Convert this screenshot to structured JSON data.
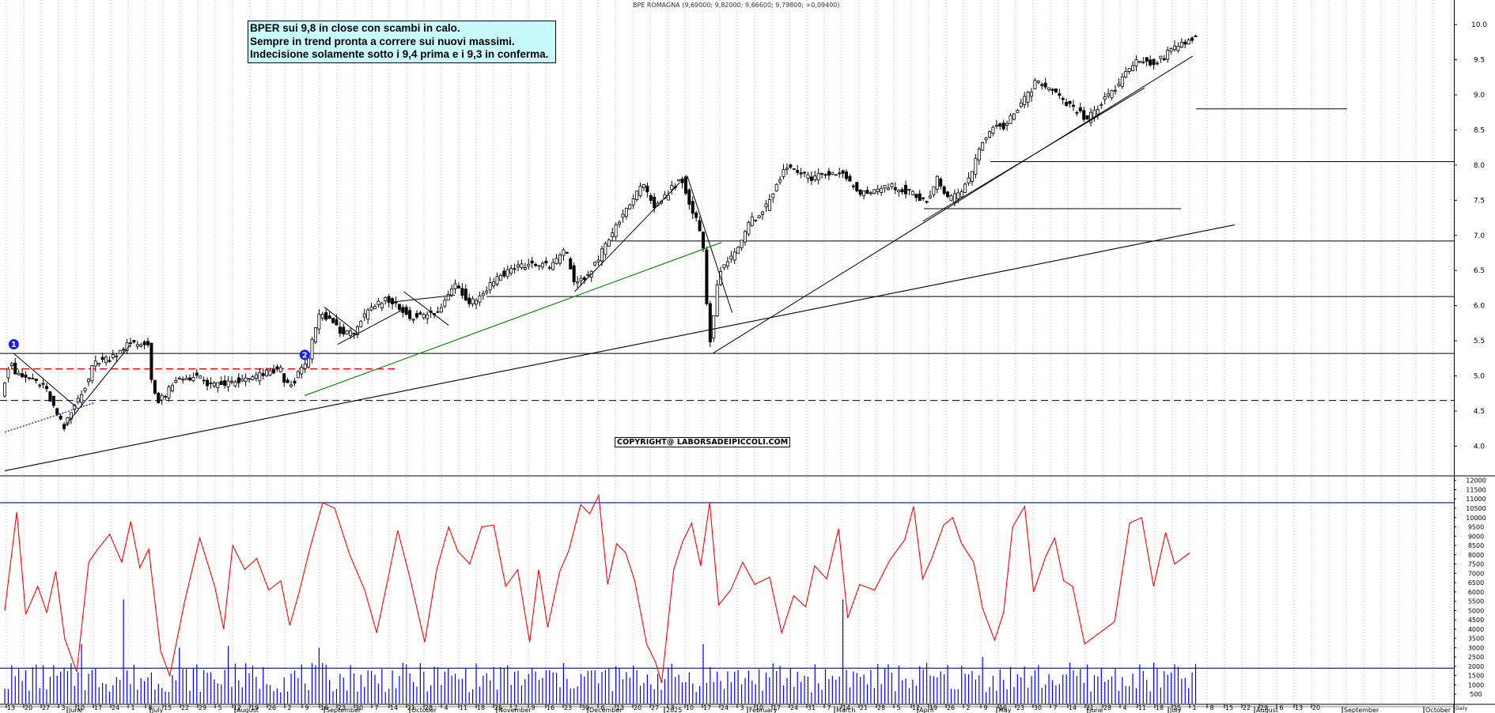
{
  "header": {
    "title": "BPE ROMAGNA (9,69000; 9,82000; 9,66600; 9,79800; +0,09400)"
  },
  "annotation": {
    "lines": [
      "BPER sui 9,8 in close con scambi in calo.",
      "Sempre in trend pronta a correre sui nuovi massimi.",
      "Indecisione solamente sotto i 9,4 prima e i 9,3 in conferma."
    ]
  },
  "copyright": "COPYRIGHT@ LABORSADEIPICCOLI.COM",
  "markers": [
    {
      "label": "1"
    },
    {
      "label": "2"
    }
  ],
  "colors": {
    "candle": "#000000",
    "trendline": "#000000",
    "green_trendline": "#008000",
    "red_dashed": "#ff0000",
    "blue_dotted": "#0000ff",
    "oscillator": "#ff0000",
    "volume": "#0000ff",
    "grid": "#b4b4b4",
    "note_bg": "#c8fbfb"
  },
  "chart_data": [
    {
      "type": "candlestick",
      "ylim": [
        3.6,
        10.35
      ],
      "yticks": [
        4.0,
        4.5,
        5.0,
        5.5,
        6.0,
        6.5,
        7.0,
        7.5,
        8.0,
        8.5,
        9.0,
        9.5,
        10.0
      ],
      "ytick_labels": [
        "4.0",
        "4.5",
        "5.0",
        "5.5",
        "6.0",
        "6.5",
        "7.0",
        "7.5",
        "8.0",
        "8.5",
        "9.0",
        "9.5",
        "10.0"
      ],
      "horizontal_lines": [
        {
          "y": 5.32,
          "style": "solid"
        },
        {
          "y": 6.13,
          "style": "solid"
        },
        {
          "y": 6.92,
          "style": "solid"
        },
        {
          "y": 7.38,
          "style": "solid"
        },
        {
          "y": 8.05,
          "style": "solid"
        },
        {
          "y": 8.8,
          "style": "solid"
        },
        {
          "y": 5.1,
          "style": "red-dashed"
        },
        {
          "y": 4.65,
          "style": "black-dashed"
        }
      ],
      "key_points": [
        {
          "date": "2024-06-13",
          "price": 5.32
        },
        {
          "date": "2024-06-19",
          "price": 4.3
        },
        {
          "date": "2024-07-24",
          "price": 5.55
        },
        {
          "date": "2024-08-05",
          "price": 4.55
        },
        {
          "date": "2024-10-04",
          "price": 4.75
        },
        {
          "date": "2024-10-09",
          "price": 5.6
        },
        {
          "date": "2025-03-10",
          "price": 7.7
        },
        {
          "date": "2025-03-24",
          "price": 7.85
        },
        {
          "date": "2025-04-07",
          "price": 5.35
        },
        {
          "date": "2025-05-12",
          "price": 8.05
        },
        {
          "date": "2025-07-14",
          "price": 7.2
        },
        {
          "date": "2025-08-01",
          "price": 8.8
        },
        {
          "date": "2025-08-14",
          "price": 9.2
        },
        {
          "date": "2025-09-04",
          "price": 8.6
        },
        {
          "date": "2025-10-10",
          "price": 9.8
        }
      ],
      "last": {
        "open": 9.69,
        "high": 9.82,
        "low": 9.666,
        "close": 9.798,
        "change": 0.094
      }
    },
    {
      "type": "line",
      "name": "",
      "ylim": [
        0,
        12200
      ],
      "yticks": [
        500,
        1000,
        1500,
        2000,
        2500,
        3000,
        3500,
        4000,
        4500,
        5000,
        5500,
        6000,
        6500,
        7000,
        7500,
        8000,
        8500,
        9000,
        9500,
        10000,
        10500,
        11000,
        11500,
        12000
      ],
      "ytick_labels": [
        "500",
        "1000",
        "1500",
        "2000",
        "2500",
        "3000",
        "3500",
        "4000",
        "4500",
        "5000",
        "5500",
        "6000",
        "6500",
        "7000",
        "7500",
        "8000",
        "8500",
        "9000",
        "9500",
        "10000",
        "10500",
        "11000",
        "11500",
        "12000"
      ],
      "reference_lines": [
        10800,
        1900
      ],
      "x_month_labels": [
        "June",
        "July",
        "August",
        "September",
        "October",
        "November",
        "December",
        "2025",
        "February",
        "March",
        "April",
        "May",
        "June",
        "July",
        "August",
        "September",
        "October"
      ],
      "x_day_labels": [
        "13",
        "20",
        "27",
        "3",
        "10",
        "17",
        "24",
        "1",
        "8",
        "15",
        "22",
        "29",
        "5",
        "12",
        "19",
        "26",
        "2",
        "9",
        "16",
        "23",
        "30",
        "7",
        "14",
        "21",
        "28",
        "4",
        "11",
        "18",
        "25",
        "2",
        "9",
        "16",
        "23",
        "30",
        "6",
        "13",
        "20",
        "27",
        "3",
        "10",
        "17",
        "24",
        "3",
        "10",
        "17",
        "24",
        "31",
        "7",
        "14",
        "21",
        "28",
        "5",
        "12",
        "19",
        "26",
        "2",
        "9",
        "16",
        "23",
        "30",
        "7",
        "14",
        "21",
        "28",
        "4",
        "11",
        "18",
        "25",
        "1",
        "8",
        "15",
        "22",
        "29",
        "6",
        "13",
        "20"
      ],
      "x_axis_end_label": "Daily"
    }
  ]
}
